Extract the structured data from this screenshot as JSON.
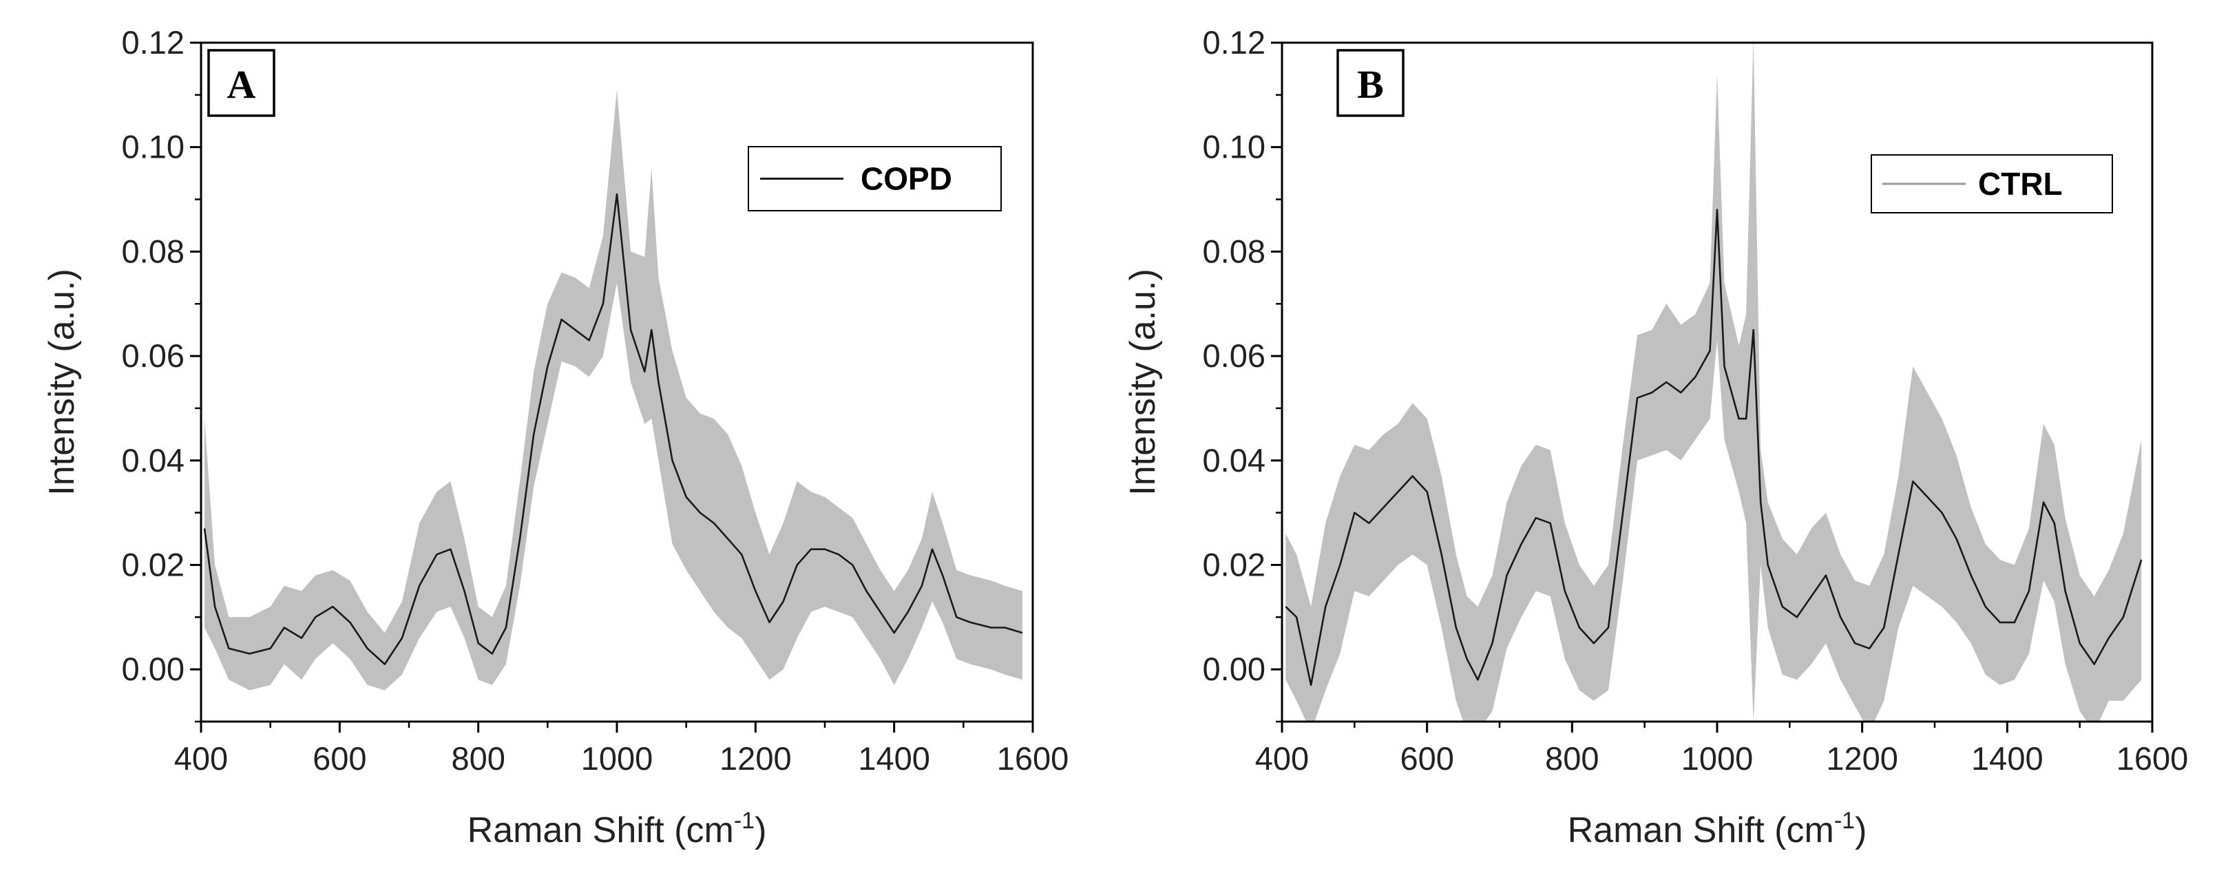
{
  "chart_data": [
    {
      "type": "line",
      "panel_label": "A",
      "xlabel_main": "Raman Shift (cm",
      "xlabel_sup": "-1",
      "xlabel_tail": ")",
      "ylabel": "Intensity (a.u.)",
      "xlim": [
        400,
        1600
      ],
      "ylim": [
        -0.01,
        0.12
      ],
      "x_ticks": [
        "400",
        "600",
        "800",
        "1000",
        "1200",
        "1400",
        "1600"
      ],
      "y_ticks": [
        "0.00",
        "0.02",
        "0.04",
        "0.06",
        "0.08",
        "0.10",
        "0.12"
      ],
      "legend_position": "top-right",
      "colors": {
        "band": "#c0c0c0",
        "line": "#1a1a1a",
        "legend_line": "#1a1a1a"
      },
      "series": [
        {
          "name": "COPD",
          "x": [
            405,
            420,
            440,
            470,
            500,
            520,
            545,
            565,
            590,
            615,
            640,
            665,
            690,
            715,
            740,
            760,
            780,
            800,
            820,
            840,
            860,
            880,
            900,
            920,
            940,
            960,
            980,
            1000,
            1020,
            1040,
            1050,
            1060,
            1080,
            1100,
            1120,
            1140,
            1160,
            1180,
            1200,
            1220,
            1240,
            1260,
            1280,
            1300,
            1320,
            1340,
            1360,
            1380,
            1400,
            1420,
            1440,
            1455,
            1470,
            1490,
            1510,
            1540,
            1560,
            1585
          ],
          "y": [
            0.027,
            0.012,
            0.004,
            0.003,
            0.004,
            0.008,
            0.006,
            0.01,
            0.012,
            0.009,
            0.004,
            0.001,
            0.006,
            0.016,
            0.022,
            0.023,
            0.015,
            0.005,
            0.003,
            0.008,
            0.025,
            0.045,
            0.058,
            0.067,
            0.065,
            0.063,
            0.07,
            0.091,
            0.065,
            0.057,
            0.065,
            0.055,
            0.04,
            0.033,
            0.03,
            0.028,
            0.025,
            0.022,
            0.015,
            0.009,
            0.013,
            0.02,
            0.023,
            0.023,
            0.022,
            0.02,
            0.015,
            0.011,
            0.007,
            0.011,
            0.016,
            0.023,
            0.018,
            0.01,
            0.009,
            0.008,
            0.008,
            0.007
          ],
          "upper": [
            0.048,
            0.02,
            0.01,
            0.01,
            0.012,
            0.016,
            0.015,
            0.018,
            0.019,
            0.017,
            0.011,
            0.007,
            0.013,
            0.028,
            0.034,
            0.036,
            0.025,
            0.012,
            0.01,
            0.016,
            0.036,
            0.057,
            0.07,
            0.076,
            0.075,
            0.073,
            0.083,
            0.111,
            0.08,
            0.079,
            0.096,
            0.075,
            0.061,
            0.052,
            0.049,
            0.048,
            0.045,
            0.039,
            0.03,
            0.022,
            0.028,
            0.036,
            0.034,
            0.033,
            0.031,
            0.029,
            0.024,
            0.019,
            0.015,
            0.019,
            0.025,
            0.034,
            0.028,
            0.019,
            0.018,
            0.017,
            0.016,
            0.015
          ],
          "lower": [
            0.008,
            0.004,
            -0.002,
            -0.004,
            -0.003,
            0.001,
            -0.002,
            0.002,
            0.005,
            0.002,
            -0.003,
            -0.004,
            -0.001,
            0.006,
            0.011,
            0.012,
            0.006,
            -0.002,
            -0.003,
            0.001,
            0.016,
            0.035,
            0.047,
            0.059,
            0.058,
            0.056,
            0.06,
            0.074,
            0.055,
            0.047,
            0.048,
            0.04,
            0.024,
            0.019,
            0.015,
            0.011,
            0.008,
            0.006,
            0.002,
            -0.002,
            0.0,
            0.006,
            0.011,
            0.012,
            0.011,
            0.01,
            0.006,
            0.002,
            -0.003,
            0.002,
            0.008,
            0.013,
            0.009,
            0.002,
            0.001,
            0.0,
            -0.001,
            -0.002
          ]
        }
      ]
    },
    {
      "type": "line",
      "panel_label": "B",
      "xlabel_main": "Raman Shift (cm",
      "xlabel_sup": "-1",
      "xlabel_tail": ")",
      "ylabel": "Intensity (a.u.)",
      "xlim": [
        400,
        1600
      ],
      "ylim": [
        -0.01,
        0.12
      ],
      "x_ticks": [
        "400",
        "600",
        "800",
        "1000",
        "1200",
        "1400",
        "1600"
      ],
      "y_ticks": [
        "0.00",
        "0.02",
        "0.04",
        "0.06",
        "0.08",
        "0.10",
        "0.12"
      ],
      "legend_position": "top-right",
      "colors": {
        "band": "#c0c0c0",
        "line": "#1a1a1a",
        "legend_line": "#9a9a9a"
      },
      "series": [
        {
          "name": "CTRL",
          "x": [
            405,
            420,
            440,
            460,
            480,
            500,
            520,
            540,
            560,
            580,
            600,
            620,
            640,
            655,
            670,
            690,
            710,
            730,
            750,
            770,
            790,
            810,
            830,
            850,
            870,
            890,
            910,
            930,
            950,
            970,
            990,
            1000,
            1010,
            1030,
            1040,
            1050,
            1060,
            1070,
            1090,
            1110,
            1130,
            1150,
            1170,
            1190,
            1210,
            1230,
            1250,
            1270,
            1290,
            1310,
            1330,
            1350,
            1370,
            1390,
            1410,
            1430,
            1450,
            1465,
            1480,
            1500,
            1520,
            1540,
            1560,
            1585
          ],
          "y": [
            0.012,
            0.01,
            -0.003,
            0.012,
            0.02,
            0.03,
            0.028,
            0.031,
            0.034,
            0.037,
            0.034,
            0.022,
            0.008,
            0.002,
            -0.002,
            0.005,
            0.018,
            0.024,
            0.029,
            0.028,
            0.015,
            0.008,
            0.005,
            0.008,
            0.03,
            0.052,
            0.053,
            0.055,
            0.053,
            0.056,
            0.061,
            0.088,
            0.058,
            0.048,
            0.048,
            0.065,
            0.032,
            0.02,
            0.012,
            0.01,
            0.014,
            0.018,
            0.01,
            0.005,
            0.004,
            0.008,
            0.022,
            0.036,
            0.033,
            0.03,
            0.025,
            0.018,
            0.012,
            0.009,
            0.009,
            0.015,
            0.032,
            0.028,
            0.015,
            0.005,
            0.001,
            0.006,
            0.01,
            0.021
          ],
          "upper": [
            0.026,
            0.022,
            0.012,
            0.028,
            0.037,
            0.043,
            0.042,
            0.045,
            0.047,
            0.051,
            0.048,
            0.037,
            0.022,
            0.014,
            0.012,
            0.018,
            0.032,
            0.039,
            0.043,
            0.042,
            0.028,
            0.02,
            0.016,
            0.02,
            0.043,
            0.064,
            0.065,
            0.07,
            0.066,
            0.068,
            0.074,
            0.114,
            0.074,
            0.062,
            0.068,
            0.121,
            0.042,
            0.032,
            0.025,
            0.022,
            0.027,
            0.03,
            0.022,
            0.017,
            0.016,
            0.022,
            0.037,
            0.058,
            0.053,
            0.048,
            0.041,
            0.031,
            0.024,
            0.021,
            0.02,
            0.027,
            0.047,
            0.043,
            0.029,
            0.018,
            0.014,
            0.019,
            0.026,
            0.044
          ],
          "lower": [
            -0.002,
            -0.006,
            -0.012,
            -0.004,
            0.003,
            0.015,
            0.014,
            0.017,
            0.02,
            0.022,
            0.02,
            0.008,
            -0.006,
            -0.012,
            -0.012,
            -0.008,
            0.004,
            0.01,
            0.015,
            0.014,
            0.002,
            -0.004,
            -0.006,
            -0.004,
            0.017,
            0.04,
            0.041,
            0.042,
            0.04,
            0.044,
            0.048,
            0.063,
            0.044,
            0.034,
            0.028,
            -0.01,
            0.02,
            0.008,
            -0.001,
            -0.002,
            0.001,
            0.005,
            -0.002,
            -0.007,
            -0.012,
            -0.006,
            0.008,
            0.016,
            0.014,
            0.012,
            0.009,
            0.005,
            -0.001,
            -0.003,
            -0.002,
            0.003,
            0.017,
            0.013,
            0.001,
            -0.008,
            -0.012,
            -0.006,
            -0.006,
            -0.002
          ]
        }
      ]
    }
  ]
}
